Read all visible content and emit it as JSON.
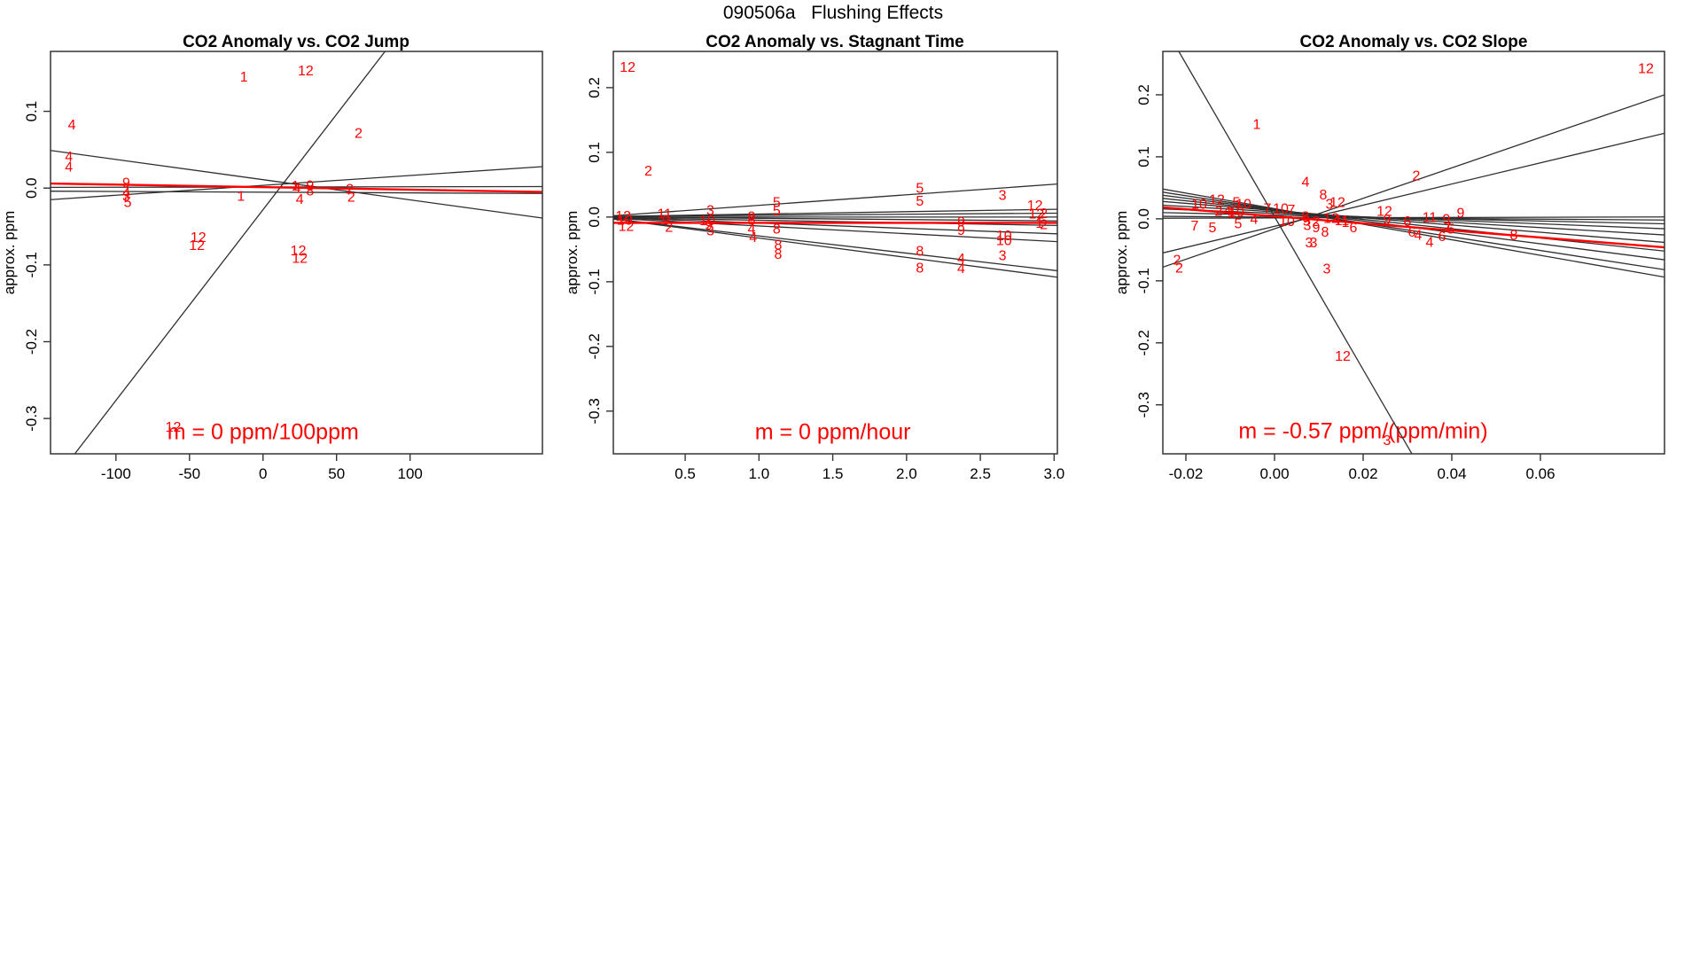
{
  "page": {
    "main_title": "090506a   Flushing Effects",
    "background": "#ffffff"
  },
  "colors": {
    "accent_red": "#ff0000",
    "line_dark": "#2f2f2f",
    "axis_black": "#000000"
  },
  "chart_data": [
    {
      "type": "scatter",
      "title": "CO2 Anomaly vs. CO2 Jump",
      "xlabel": "",
      "ylabel": "approx. ppm",
      "annotation": {
        "text": "m = 0 ppm/100ppm",
        "x": 0,
        "y": -0.318
      },
      "xlim": [
        -144.5,
        190
      ],
      "ylim": [
        -0.346,
        0.178
      ],
      "grid": false,
      "x_ticks": [
        {
          "v": -100,
          "label": "-100"
        },
        {
          "v": -50,
          "label": "-50"
        },
        {
          "v": 0,
          "label": "0"
        },
        {
          "v": 50,
          "label": "50"
        },
        {
          "v": 100,
          "label": "100"
        }
      ],
      "y_ticks": [
        {
          "v": 0.1,
          "label": "0.1"
        },
        {
          "v": 0.0,
          "label": "0.0"
        },
        {
          "v": -0.1,
          "label": "-0.1"
        },
        {
          "v": -0.2,
          "label": "-0.2"
        },
        {
          "v": -0.3,
          "label": "-0.3"
        }
      ],
      "points": [
        {
          "l": "4",
          "x": -130,
          "y": 0.083
        },
        {
          "l": "4",
          "x": -132,
          "y": 0.041
        },
        {
          "l": "4",
          "x": -132,
          "y": 0.028
        },
        {
          "l": "1",
          "x": -13,
          "y": 0.145
        },
        {
          "l": "12",
          "x": 29,
          "y": 0.153
        },
        {
          "l": "2",
          "x": 65,
          "y": 0.072
        },
        {
          "l": "9",
          "x": -93,
          "y": 0.007
        },
        {
          "l": "4",
          "x": -93,
          "y": -0.006
        },
        {
          "l": "3",
          "x": -93,
          "y": -0.01
        },
        {
          "l": "5",
          "x": -92,
          "y": -0.018
        },
        {
          "l": "1",
          "x": -15,
          "y": -0.01
        },
        {
          "l": "1",
          "x": 22,
          "y": 0.003
        },
        {
          "l": "4",
          "x": 23,
          "y": 0.0
        },
        {
          "l": "9",
          "x": 32,
          "y": 0.004
        },
        {
          "l": "8",
          "x": 32,
          "y": -0.003
        },
        {
          "l": "4",
          "x": 25,
          "y": -0.014
        },
        {
          "l": "2",
          "x": 59,
          "y": -0.001
        },
        {
          "l": "2",
          "x": 60,
          "y": -0.011
        },
        {
          "l": "12",
          "x": -44,
          "y": -0.064
        },
        {
          "l": "12",
          "x": -45,
          "y": -0.074
        },
        {
          "l": "12",
          "x": 24,
          "y": -0.081
        },
        {
          "l": "12",
          "x": 25,
          "y": -0.091
        },
        {
          "l": "12",
          "x": -61,
          "y": -0.311
        }
      ],
      "fit_lines": [
        {
          "x1": -128,
          "y1": -0.346,
          "x2": 83,
          "y2": 0.178,
          "c": "black"
        },
        {
          "x1": -144.5,
          "y1": 0.049,
          "x2": 190,
          "y2": -0.039,
          "c": "black"
        },
        {
          "x1": -144.5,
          "y1": -0.015,
          "x2": 190,
          "y2": 0.028,
          "c": "black"
        },
        {
          "x1": -144.5,
          "y1": 0.001,
          "x2": 190,
          "y2": 0.002,
          "c": "black"
        },
        {
          "x1": -144.5,
          "y1": -0.004,
          "x2": 190,
          "y2": -0.007,
          "c": "black"
        },
        {
          "x1": -144.5,
          "y1": 0.006,
          "x2": 190,
          "y2": -0.005,
          "c": "red"
        }
      ]
    },
    {
      "type": "scatter",
      "title": "CO2 Anomaly vs. Stagnant Time",
      "xlabel": "",
      "ylabel": "approx. ppm",
      "annotation": {
        "text": "m = 0 ppm/hour",
        "x": 1.5,
        "y": -0.333
      },
      "xlim": [
        0.013,
        3.022
      ],
      "ylim": [
        -0.366,
        0.256
      ],
      "grid": false,
      "x_ticks": [
        {
          "v": 0.5,
          "label": "0.5"
        },
        {
          "v": 1.0,
          "label": "1.0"
        },
        {
          "v": 1.5,
          "label": "1.5"
        },
        {
          "v": 2.0,
          "label": "2.0"
        },
        {
          "v": 2.5,
          "label": "2.5"
        },
        {
          "v": 3.0,
          "label": "3.0"
        }
      ],
      "y_ticks": [
        {
          "v": 0.2,
          "label": "0.2"
        },
        {
          "v": 0.1,
          "label": "0.1"
        },
        {
          "v": 0.0,
          "label": "0.0"
        },
        {
          "v": -0.1,
          "label": "-0.1"
        },
        {
          "v": -0.2,
          "label": "-0.2"
        },
        {
          "v": -0.3,
          "label": "-0.3"
        }
      ],
      "points": [
        {
          "l": "12",
          "x": 0.11,
          "y": 0.232
        },
        {
          "l": "2",
          "x": 0.25,
          "y": 0.072
        },
        {
          "l": "12",
          "x": 0.08,
          "y": 0.002
        },
        {
          "l": "10",
          "x": 0.09,
          "y": -0.004
        },
        {
          "l": "12",
          "x": 0.1,
          "y": -0.014
        },
        {
          "l": "11",
          "x": 0.36,
          "y": 0.005
        },
        {
          "l": "9",
          "x": 0.37,
          "y": -0.004
        },
        {
          "l": "2",
          "x": 0.39,
          "y": -0.015
        },
        {
          "l": "3",
          "x": 0.67,
          "y": 0.011
        },
        {
          "l": "10",
          "x": 0.65,
          "y": -0.005
        },
        {
          "l": "9",
          "x": 0.66,
          "y": -0.012
        },
        {
          "l": "3",
          "x": 0.67,
          "y": -0.021
        },
        {
          "l": "9",
          "x": 0.95,
          "y": 0.001
        },
        {
          "l": "8",
          "x": 0.95,
          "y": -0.004
        },
        {
          "l": "4",
          "x": 0.95,
          "y": -0.018
        },
        {
          "l": "4",
          "x": 0.96,
          "y": -0.031
        },
        {
          "l": "5",
          "x": 1.12,
          "y": 0.023
        },
        {
          "l": "5",
          "x": 1.12,
          "y": 0.01
        },
        {
          "l": "8",
          "x": 1.12,
          "y": -0.018
        },
        {
          "l": "8",
          "x": 1.13,
          "y": -0.043
        },
        {
          "l": "8",
          "x": 1.13,
          "y": -0.057
        },
        {
          "l": "5",
          "x": 2.09,
          "y": 0.045
        },
        {
          "l": "5",
          "x": 2.09,
          "y": 0.025
        },
        {
          "l": "8",
          "x": 2.09,
          "y": -0.052
        },
        {
          "l": "8",
          "x": 2.09,
          "y": -0.078
        },
        {
          "l": "9",
          "x": 2.37,
          "y": -0.007
        },
        {
          "l": "9",
          "x": 2.37,
          "y": -0.02
        },
        {
          "l": "4",
          "x": 2.37,
          "y": -0.064
        },
        {
          "l": "4",
          "x": 2.37,
          "y": -0.079
        },
        {
          "l": "3",
          "x": 2.65,
          "y": 0.034
        },
        {
          "l": "10",
          "x": 2.66,
          "y": -0.028
        },
        {
          "l": "10",
          "x": 2.66,
          "y": -0.036
        },
        {
          "l": "3",
          "x": 2.65,
          "y": -0.059
        },
        {
          "l": "12",
          "x": 2.87,
          "y": 0.018
        },
        {
          "l": "12",
          "x": 2.88,
          "y": 0.005
        },
        {
          "l": "2",
          "x": 2.93,
          "y": 0.006
        },
        {
          "l": "1",
          "x": 2.9,
          "y": -0.009
        },
        {
          "l": "2",
          "x": 2.93,
          "y": -0.011
        }
      ],
      "fit_lines": [
        {
          "x1": 0.013,
          "y1": 0.002,
          "x2": 3.022,
          "y2": 0.051,
          "c": "black"
        },
        {
          "x1": 0.013,
          "y1": 0.001,
          "x2": 3.022,
          "y2": 0.012,
          "c": "black"
        },
        {
          "x1": 0.013,
          "y1": 0.001,
          "x2": 3.022,
          "y2": 0.006,
          "c": "black"
        },
        {
          "x1": 0.013,
          "y1": 0.0,
          "x2": 3.022,
          "y2": 0.0,
          "c": "black"
        },
        {
          "x1": 0.013,
          "y1": 0.0,
          "x2": 3.022,
          "y2": -0.006,
          "c": "black"
        },
        {
          "x1": 0.013,
          "y1": -0.001,
          "x2": 3.022,
          "y2": -0.013,
          "c": "black"
        },
        {
          "x1": 0.013,
          "y1": -0.001,
          "x2": 3.022,
          "y2": -0.026,
          "c": "black"
        },
        {
          "x1": 0.013,
          "y1": -0.002,
          "x2": 3.022,
          "y2": -0.038,
          "c": "black"
        },
        {
          "x1": 0.013,
          "y1": -0.003,
          "x2": 3.022,
          "y2": -0.083,
          "c": "black"
        },
        {
          "x1": 0.013,
          "y1": -0.003,
          "x2": 3.022,
          "y2": -0.093,
          "c": "black"
        },
        {
          "x1": 0.013,
          "y1": -0.009,
          "x2": 3.022,
          "y2": -0.009,
          "c": "red"
        }
      ]
    },
    {
      "type": "scatter",
      "title": "CO2 Anomaly vs. CO2 Slope",
      "xlabel": "",
      "ylabel": "approx. ppm",
      "annotation": {
        "text": "m = -0.57 ppm/(ppm/min)",
        "x": 0.02,
        "y": -0.343
      },
      "xlim": [
        -0.0252,
        0.088
      ],
      "ylim": [
        -0.379,
        0.27
      ],
      "grid": false,
      "x_ticks": [
        {
          "v": -0.02,
          "label": "-0.02"
        },
        {
          "v": 0.0,
          "label": "0.00"
        },
        {
          "v": 0.02,
          "label": "0.02"
        },
        {
          "v": 0.04,
          "label": "0.04"
        },
        {
          "v": 0.06,
          "label": "0.06"
        }
      ],
      "y_ticks": [
        {
          "v": 0.2,
          "label": "0.2"
        },
        {
          "v": 0.1,
          "label": "0.1"
        },
        {
          "v": 0.0,
          "label": "0.0"
        },
        {
          "v": -0.1,
          "label": "-0.1"
        },
        {
          "v": -0.2,
          "label": "-0.2"
        },
        {
          "v": -0.3,
          "label": "-0.3"
        }
      ],
      "points": [
        {
          "l": "12",
          "x": 0.0838,
          "y": 0.243
        },
        {
          "l": "1",
          "x": -0.004,
          "y": 0.153
        },
        {
          "l": "2",
          "x": 0.032,
          "y": 0.07
        },
        {
          "l": "4",
          "x": 0.007,
          "y": 0.06
        },
        {
          "l": "8",
          "x": 0.011,
          "y": 0.039
        },
        {
          "l": "3",
          "x": 0.0124,
          "y": 0.024
        },
        {
          "l": "12",
          "x": 0.0142,
          "y": 0.027
        },
        {
          "l": "10",
          "x": -0.017,
          "y": 0.024
        },
        {
          "l": "12",
          "x": -0.013,
          "y": 0.031
        },
        {
          "l": "5",
          "x": -0.0086,
          "y": 0.027
        },
        {
          "l": "10",
          "x": -0.007,
          "y": 0.024
        },
        {
          "l": "2",
          "x": -0.0126,
          "y": 0.013
        },
        {
          "l": "4",
          "x": -0.0106,
          "y": 0.013
        },
        {
          "l": "10",
          "x": -0.0086,
          "y": 0.011
        },
        {
          "l": "1",
          "x": -0.0098,
          "y": 0.01
        },
        {
          "l": "7",
          "x": -0.0016,
          "y": 0.017
        },
        {
          "l": "10",
          "x": 0.0014,
          "y": 0.017
        },
        {
          "l": "7",
          "x": 0.0038,
          "y": 0.015
        },
        {
          "l": "4",
          "x": -0.0046,
          "y": 0.0
        },
        {
          "l": "10",
          "x": 0.0028,
          "y": -0.004
        },
        {
          "l": "5",
          "x": -0.0082,
          "y": -0.007
        },
        {
          "l": "7",
          "x": -0.018,
          "y": -0.011
        },
        {
          "l": "5",
          "x": -0.014,
          "y": -0.014
        },
        {
          "l": "8",
          "x": 0.007,
          "y": 0.004
        },
        {
          "l": "9",
          "x": 0.0072,
          "y": -0.003
        },
        {
          "l": "3",
          "x": 0.0074,
          "y": -0.01
        },
        {
          "l": "2",
          "x": 0.0094,
          "y": -0.004
        },
        {
          "l": "9",
          "x": 0.0094,
          "y": -0.014
        },
        {
          "l": "8",
          "x": 0.0114,
          "y": -0.021
        },
        {
          "l": "3",
          "x": 0.0078,
          "y": -0.038
        },
        {
          "l": "3",
          "x": 0.0088,
          "y": -0.038
        },
        {
          "l": "12",
          "x": 0.0128,
          "y": 0.001
        },
        {
          "l": "4",
          "x": 0.014,
          "y": -0.001
        },
        {
          "l": "11",
          "x": 0.0152,
          "y": -0.002
        },
        {
          "l": "1",
          "x": 0.016,
          "y": -0.005
        },
        {
          "l": "12",
          "x": 0.0248,
          "y": 0.013
        },
        {
          "l": "9",
          "x": 0.0254,
          "y": -0.001
        },
        {
          "l": "11",
          "x": 0.035,
          "y": 0.003
        },
        {
          "l": "9",
          "x": 0.0388,
          "y": 0.0
        },
        {
          "l": "9",
          "x": 0.042,
          "y": 0.01
        },
        {
          "l": "7",
          "x": 0.039,
          "y": -0.014
        },
        {
          "l": "5",
          "x": 0.0398,
          "y": -0.016
        },
        {
          "l": "6",
          "x": 0.03,
          "y": -0.004
        },
        {
          "l": "6",
          "x": 0.0178,
          "y": -0.014
        },
        {
          "l": "6",
          "x": 0.031,
          "y": -0.021
        },
        {
          "l": "4",
          "x": 0.0324,
          "y": -0.026
        },
        {
          "l": "4",
          "x": 0.035,
          "y": -0.037
        },
        {
          "l": "6",
          "x": 0.0378,
          "y": -0.028
        },
        {
          "l": "8",
          "x": 0.054,
          "y": -0.026
        },
        {
          "l": "2",
          "x": -0.022,
          "y": -0.066
        },
        {
          "l": "2",
          "x": -0.0215,
          "y": -0.079
        },
        {
          "l": "3",
          "x": 0.0118,
          "y": -0.08
        },
        {
          "l": "12",
          "x": 0.0154,
          "y": -0.221
        },
        {
          "l": "3",
          "x": 0.0254,
          "y": -0.357
        }
      ],
      "fit_lines": [
        {
          "x1": -0.0216,
          "y1": 0.27,
          "x2": 0.031,
          "y2": -0.379,
          "c": "black"
        },
        {
          "x1": -0.0252,
          "y1": -0.078,
          "x2": 0.088,
          "y2": 0.2,
          "c": "black"
        },
        {
          "x1": -0.0252,
          "y1": -0.055,
          "x2": 0.088,
          "y2": 0.138,
          "c": "black"
        },
        {
          "x1": -0.0252,
          "y1": 0.001,
          "x2": 0.088,
          "y2": 0.003,
          "c": "black"
        },
        {
          "x1": -0.0252,
          "y1": 0.004,
          "x2": 0.088,
          "y2": -0.002,
          "c": "black"
        },
        {
          "x1": -0.0252,
          "y1": 0.01,
          "x2": 0.088,
          "y2": -0.008,
          "c": "black"
        },
        {
          "x1": -0.0252,
          "y1": 0.016,
          "x2": 0.088,
          "y2": -0.016,
          "c": "black"
        },
        {
          "x1": -0.0252,
          "y1": 0.022,
          "x2": 0.088,
          "y2": -0.026,
          "c": "black"
        },
        {
          "x1": -0.0252,
          "y1": 0.028,
          "x2": 0.088,
          "y2": -0.038,
          "c": "black"
        },
        {
          "x1": -0.0252,
          "y1": 0.033,
          "x2": 0.088,
          "y2": -0.052,
          "c": "black"
        },
        {
          "x1": -0.0252,
          "y1": 0.038,
          "x2": 0.088,
          "y2": -0.066,
          "c": "black"
        },
        {
          "x1": -0.0252,
          "y1": 0.043,
          "x2": 0.088,
          "y2": -0.082,
          "c": "black"
        },
        {
          "x1": -0.0252,
          "y1": 0.048,
          "x2": 0.088,
          "y2": -0.094,
          "c": "black"
        },
        {
          "x1": -0.0252,
          "y1": 0.0184,
          "x2": 0.088,
          "y2": -0.046,
          "c": "red"
        }
      ]
    }
  ]
}
